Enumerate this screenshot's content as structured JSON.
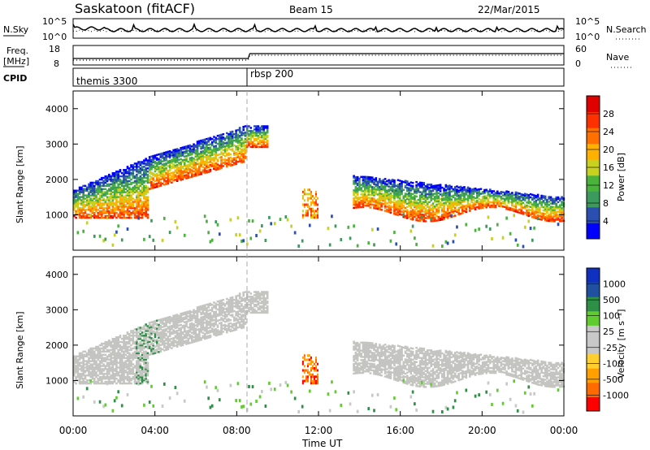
{
  "header": {
    "station": "Saskatoon (fitACF)",
    "beam": "Beam 15",
    "date": "22/Mar/2015"
  },
  "noise_panel": {
    "left_label": "N.Sky",
    "right_label": "N.Search",
    "left_ticks": [
      "10^5",
      "10^0"
    ],
    "right_ticks": [
      "10^5",
      "10^0"
    ]
  },
  "freq_panel": {
    "left_label": "Freq.",
    "left_unit": "[MHz]",
    "left_ticks": [
      "18",
      "8"
    ],
    "right_label": "Nave",
    "right_ticks": [
      "60",
      "0"
    ]
  },
  "cpid_panel": {
    "label": "CPID",
    "segments": [
      {
        "name": "themis 3300",
        "start_hour": 0
      },
      {
        "name": "rbsp 200",
        "start_hour": 8.6
      }
    ]
  },
  "x_axis": {
    "label": "Time UT",
    "ticks": [
      "00:00",
      "04:00",
      "08:00",
      "12:00",
      "16:00",
      "20:00",
      "00:00"
    ]
  },
  "colors": {
    "power_scale": [
      "#0000ff",
      "#2a4fb0",
      "#3c9a5c",
      "#49b33c",
      "#c8d020",
      "#ffb000",
      "#ff7000",
      "#ff3000",
      "#e00000"
    ],
    "velocity_scale": [
      "#ff0000",
      "#ff6a00",
      "#ffa000",
      "#ffcf30",
      "#c8c8c8",
      "#c8c8c8",
      "#60cc30",
      "#2e8f46",
      "#2050a0",
      "#1030c0"
    ],
    "ground_scatter": "#c4c4c0"
  },
  "chart_data": [
    {
      "type": "heatmap",
      "panel": "power",
      "ylabel": "Slant Range [km]",
      "ylim": [
        0,
        4500
      ],
      "yticks": [
        "1000",
        "2000",
        "3000",
        "4000"
      ],
      "xlim_hours": [
        0,
        24
      ],
      "colorbar_label": "Power [dB]",
      "colorbar_ticks": [
        "28",
        "24",
        "20",
        "16",
        "12",
        "8",
        "4"
      ],
      "colorbar_range": [
        0,
        30
      ]
    },
    {
      "type": "heatmap",
      "panel": "velocity",
      "ylabel": "Slant Range [km]",
      "ylim": [
        0,
        4500
      ],
      "yticks": [
        "1000",
        "2000",
        "3000",
        "4000"
      ],
      "xlim_hours": [
        0,
        24
      ],
      "colorbar_label": "Velocity [m s⁻¹]",
      "colorbar_ticks": [
        "1000",
        "500",
        "100",
        "25",
        "-25",
        "-100",
        "-500",
        "-1000"
      ],
      "colorbar_range": [
        -1000,
        1000
      ]
    }
  ]
}
